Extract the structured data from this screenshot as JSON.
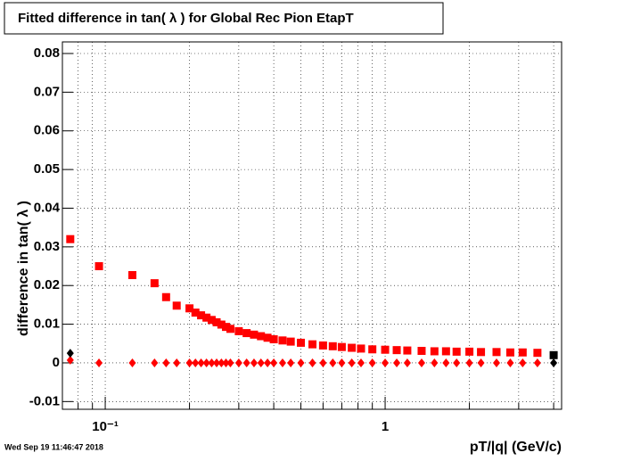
{
  "chart_data": {
    "type": "scatter",
    "title": "Fitted difference in tan( λ ) for Global Rec Pion EtapT",
    "x_label": "pT/|q| (GeV/c)",
    "y_label": "difference in tan( λ )",
    "timestamp": "Wed Sep 19 11:46:47 2018",
    "x_log": true,
    "grid": true,
    "xlim": [
      0.0703,
      4.27
    ],
    "ylim": [
      -0.012,
      0.083
    ],
    "xticks": [
      {
        "value": 0.1,
        "label": "10⁻¹"
      },
      1
    ],
    "xminorticks": [
      0.08,
      0.09,
      0.2,
      0.3,
      0.4,
      0.5,
      0.6,
      0.7,
      0.8,
      0.9,
      2,
      3,
      4
    ],
    "yticks": [
      -0.01,
      0,
      0.01,
      0.02,
      0.03,
      0.04,
      0.05,
      0.06,
      0.07,
      0.08
    ],
    "series": [
      {
        "color": "#ff0000",
        "marker": "square",
        "x": [
          0.075,
          0.095,
          0.125,
          0.15,
          0.165,
          0.18,
          0.2,
          0.21,
          0.22,
          0.23,
          0.24,
          0.25,
          0.26,
          0.27,
          0.28,
          0.3,
          0.32,
          0.34,
          0.36,
          0.38,
          0.4,
          0.43,
          0.46,
          0.5,
          0.55,
          0.6,
          0.65,
          0.7,
          0.76,
          0.82,
          0.9,
          1.0,
          1.1,
          1.2,
          1.35,
          1.5,
          1.65,
          1.8,
          2.0,
          2.2,
          2.5,
          2.8,
          3.1,
          3.5
        ],
        "values": [
          0.032,
          0.025,
          0.0227,
          0.0206,
          0.017,
          0.0148,
          0.0141,
          0.013,
          0.0123,
          0.0117,
          0.0111,
          0.0105,
          0.0099,
          0.0093,
          0.0088,
          0.0082,
          0.0077,
          0.0073,
          0.0069,
          0.0065,
          0.0061,
          0.0058,
          0.0055,
          0.0052,
          0.0048,
          0.0045,
          0.0043,
          0.0041,
          0.0039,
          0.0037,
          0.0035,
          0.0034,
          0.0033,
          0.0032,
          0.0031,
          0.003,
          0.003,
          0.0029,
          0.0029,
          0.0028,
          0.0028,
          0.0027,
          0.0027,
          0.0026
        ]
      },
      {
        "color": "#ff0000",
        "marker": "diamond",
        "x": [
          0.075,
          0.095,
          0.125,
          0.15,
          0.165,
          0.18,
          0.2,
          0.21,
          0.22,
          0.23,
          0.24,
          0.25,
          0.26,
          0.27,
          0.28,
          0.3,
          0.32,
          0.34,
          0.36,
          0.38,
          0.4,
          0.43,
          0.46,
          0.5,
          0.55,
          0.6,
          0.65,
          0.7,
          0.76,
          0.82,
          0.9,
          1.0,
          1.1,
          1.2,
          1.35,
          1.5,
          1.65,
          1.8,
          2.0,
          2.2,
          2.5,
          2.8,
          3.1,
          3.5
        ],
        "values": [
          0.0007,
          0,
          0,
          0,
          0,
          0,
          0,
          0,
          0,
          0,
          0,
          0,
          0,
          0,
          0,
          0,
          0,
          0,
          0,
          0,
          0,
          0,
          0,
          0,
          0,
          0,
          0,
          0,
          0,
          0,
          0,
          0,
          0,
          0,
          0,
          0,
          0,
          0,
          0,
          0,
          0,
          0,
          0,
          0
        ]
      },
      {
        "color": "#000000",
        "marker": "square",
        "x": [
          4.0
        ],
        "values": [
          0.002
        ]
      },
      {
        "color": "#000000",
        "marker": "diamond",
        "x": [
          0.075,
          4.0
        ],
        "values": [
          0.0025,
          0
        ]
      }
    ]
  }
}
